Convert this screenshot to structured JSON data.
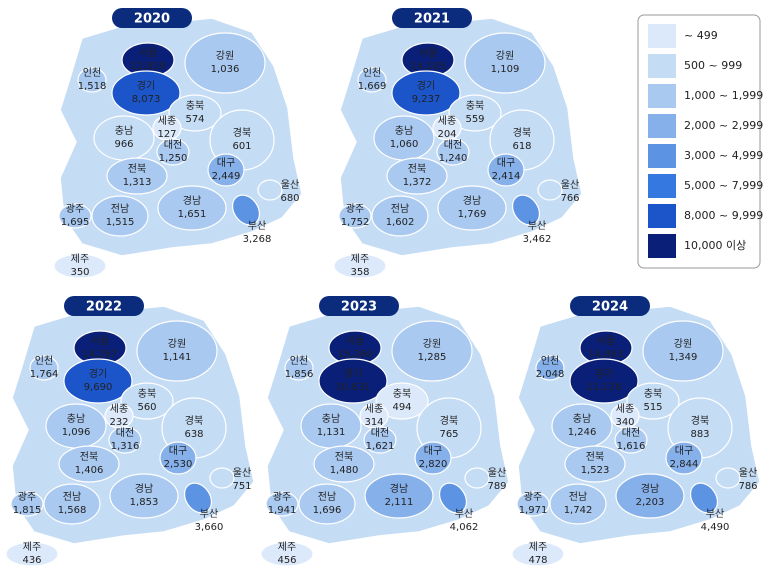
{
  "legend": [
    {
      "label": "~ 499",
      "color": "#dbe9fb"
    },
    {
      "label": "500 ~ 999",
      "color": "#c5dcf5"
    },
    {
      "label": "1,000 ~ 1,999",
      "color": "#a9c9f0"
    },
    {
      "label": "2,000 ~ 2,999",
      "color": "#86b0ea"
    },
    {
      "label": "3,000 ~ 4,999",
      "color": "#5d93e3"
    },
    {
      "label": "5,000 ~ 7,999",
      "color": "#3578e0"
    },
    {
      "label": "8,000 ~ 9,999",
      "color": "#1c55c9"
    },
    {
      "label": "10,000 이상",
      "color": "#0a1f78"
    }
  ],
  "maps": [
    {
      "year": "2020",
      "regions": [
        {
          "name": "서울",
          "value": 12819,
          "value_label": "12,819",
          "color": "#0a1f78"
        },
        {
          "name": "강원",
          "value": 1036,
          "value_label": "1,036",
          "color": "#a9c9f0"
        },
        {
          "name": "인천",
          "value": 1518,
          "value_label": "1,518",
          "color": "#a9c9f0"
        },
        {
          "name": "경기",
          "value": 8073,
          "value_label": "8,073",
          "color": "#1c55c9"
        },
        {
          "name": "충북",
          "value": 574,
          "value_label": "574",
          "color": "#c5dcf5"
        },
        {
          "name": "세종",
          "value": 127,
          "value_label": "127",
          "color": "#dbe9fb"
        },
        {
          "name": "충남",
          "value": 966,
          "value_label": "966",
          "color": "#c5dcf5"
        },
        {
          "name": "경북",
          "value": 601,
          "value_label": "601",
          "color": "#c5dcf5"
        },
        {
          "name": "대전",
          "value": 1250,
          "value_label": "1,250",
          "color": "#a9c9f0"
        },
        {
          "name": "대구",
          "value": 2449,
          "value_label": "2,449",
          "color": "#86b0ea"
        },
        {
          "name": "전북",
          "value": 1313,
          "value_label": "1,313",
          "color": "#a9c9f0"
        },
        {
          "name": "울산",
          "value": 680,
          "value_label": "680",
          "color": "#c5dcf5"
        },
        {
          "name": "광주",
          "value": 1695,
          "value_label": "1,695",
          "color": "#a9c9f0"
        },
        {
          "name": "전남",
          "value": 1515,
          "value_label": "1,515",
          "color": "#a9c9f0"
        },
        {
          "name": "경남",
          "value": 1651,
          "value_label": "1,651",
          "color": "#a9c9f0"
        },
        {
          "name": "부산",
          "value": 3268,
          "value_label": "3,268",
          "color": "#5d93e3"
        },
        {
          "name": "제주",
          "value": 350,
          "value_label": "350",
          "color": "#dbe9fb"
        }
      ]
    },
    {
      "year": "2021",
      "regions": [
        {
          "name": "서울",
          "value": 14103,
          "value_label": "14,103",
          "color": "#0a1f78"
        },
        {
          "name": "강원",
          "value": 1109,
          "value_label": "1,109",
          "color": "#a9c9f0"
        },
        {
          "name": "인천",
          "value": 1669,
          "value_label": "1,669",
          "color": "#a9c9f0"
        },
        {
          "name": "경기",
          "value": 9237,
          "value_label": "9,237",
          "color": "#1c55c9"
        },
        {
          "name": "충북",
          "value": 559,
          "value_label": "559",
          "color": "#c5dcf5"
        },
        {
          "name": "세종",
          "value": 204,
          "value_label": "204",
          "color": "#dbe9fb"
        },
        {
          "name": "충남",
          "value": 1060,
          "value_label": "1,060",
          "color": "#a9c9f0"
        },
        {
          "name": "경북",
          "value": 618,
          "value_label": "618",
          "color": "#c5dcf5"
        },
        {
          "name": "대전",
          "value": 1240,
          "value_label": "1,240",
          "color": "#a9c9f0"
        },
        {
          "name": "대구",
          "value": 2414,
          "value_label": "2,414",
          "color": "#86b0ea"
        },
        {
          "name": "전북",
          "value": 1372,
          "value_label": "1,372",
          "color": "#a9c9f0"
        },
        {
          "name": "울산",
          "value": 766,
          "value_label": "766",
          "color": "#c5dcf5"
        },
        {
          "name": "광주",
          "value": 1752,
          "value_label": "1,752",
          "color": "#a9c9f0"
        },
        {
          "name": "전남",
          "value": 1602,
          "value_label": "1,602",
          "color": "#a9c9f0"
        },
        {
          "name": "경남",
          "value": 1769,
          "value_label": "1,769",
          "color": "#a9c9f0"
        },
        {
          "name": "부산",
          "value": 3462,
          "value_label": "3,462",
          "color": "#5d93e3"
        },
        {
          "name": "제주",
          "value": 358,
          "value_label": "358",
          "color": "#dbe9fb"
        }
      ]
    },
    {
      "year": "2022",
      "regions": [
        {
          "name": "서울",
          "value": 14267,
          "value_label": "14,267",
          "color": "#0a1f78"
        },
        {
          "name": "강원",
          "value": 1141,
          "value_label": "1,141",
          "color": "#a9c9f0"
        },
        {
          "name": "인천",
          "value": 1764,
          "value_label": "1,764",
          "color": "#a9c9f0"
        },
        {
          "name": "경기",
          "value": 9690,
          "value_label": "9,690",
          "color": "#1c55c9"
        },
        {
          "name": "충북",
          "value": 560,
          "value_label": "560",
          "color": "#c5dcf5"
        },
        {
          "name": "세종",
          "value": 232,
          "value_label": "232",
          "color": "#dbe9fb"
        },
        {
          "name": "충남",
          "value": 1096,
          "value_label": "1,096",
          "color": "#a9c9f0"
        },
        {
          "name": "경북",
          "value": 638,
          "value_label": "638",
          "color": "#c5dcf5"
        },
        {
          "name": "대전",
          "value": 1316,
          "value_label": "1,316",
          "color": "#a9c9f0"
        },
        {
          "name": "대구",
          "value": 2530,
          "value_label": "2,530",
          "color": "#86b0ea"
        },
        {
          "name": "전북",
          "value": 1406,
          "value_label": "1,406",
          "color": "#a9c9f0"
        },
        {
          "name": "울산",
          "value": 751,
          "value_label": "751",
          "color": "#c5dcf5"
        },
        {
          "name": "광주",
          "value": 1815,
          "value_label": "1,815",
          "color": "#a9c9f0"
        },
        {
          "name": "전남",
          "value": 1568,
          "value_label": "1,568",
          "color": "#a9c9f0"
        },
        {
          "name": "경남",
          "value": 1853,
          "value_label": "1,853",
          "color": "#a9c9f0"
        },
        {
          "name": "부산",
          "value": 3660,
          "value_label": "3,660",
          "color": "#5d93e3"
        },
        {
          "name": "제주",
          "value": 436,
          "value_label": "436",
          "color": "#dbe9fb"
        }
      ]
    },
    {
      "year": "2023",
      "regions": [
        {
          "name": "서울",
          "value": 15266,
          "value_label": "15,266",
          "color": "#0a1f78"
        },
        {
          "name": "강원",
          "value": 1285,
          "value_label": "1,285",
          "color": "#a9c9f0"
        },
        {
          "name": "인천",
          "value": 1856,
          "value_label": "1,856",
          "color": "#a9c9f0"
        },
        {
          "name": "경기",
          "value": 10631,
          "value_label": "10,631",
          "color": "#0a1f78"
        },
        {
          "name": "충북",
          "value": 494,
          "value_label": "494",
          "color": "#dbe9fb"
        },
        {
          "name": "세종",
          "value": 314,
          "value_label": "314",
          "color": "#dbe9fb"
        },
        {
          "name": "충남",
          "value": 1131,
          "value_label": "1,131",
          "color": "#a9c9f0"
        },
        {
          "name": "경북",
          "value": 765,
          "value_label": "765",
          "color": "#c5dcf5"
        },
        {
          "name": "대전",
          "value": 1621,
          "value_label": "1,621",
          "color": "#a9c9f0"
        },
        {
          "name": "대구",
          "value": 2820,
          "value_label": "2,820",
          "color": "#86b0ea"
        },
        {
          "name": "전북",
          "value": 1480,
          "value_label": "1,480",
          "color": "#a9c9f0"
        },
        {
          "name": "울산",
          "value": 789,
          "value_label": "789",
          "color": "#c5dcf5"
        },
        {
          "name": "광주",
          "value": 1941,
          "value_label": "1,941",
          "color": "#a9c9f0"
        },
        {
          "name": "전남",
          "value": 1696,
          "value_label": "1,696",
          "color": "#a9c9f0"
        },
        {
          "name": "경남",
          "value": 2111,
          "value_label": "2,111",
          "color": "#86b0ea"
        },
        {
          "name": "부산",
          "value": 4062,
          "value_label": "4,062",
          "color": "#5d93e3"
        },
        {
          "name": "제주",
          "value": 456,
          "value_label": "456",
          "color": "#dbe9fb"
        }
      ]
    },
    {
      "year": "2024",
      "regions": [
        {
          "name": "서울",
          "value": 14863,
          "value_label": "14,863",
          "color": "#0a1f78"
        },
        {
          "name": "강원",
          "value": 1349,
          "value_label": "1,349",
          "color": "#a9c9f0"
        },
        {
          "name": "인천",
          "value": 2048,
          "value_label": "2,048",
          "color": "#86b0ea"
        },
        {
          "name": "경기",
          "value": 11128,
          "value_label": "11,128",
          "color": "#0a1f78"
        },
        {
          "name": "충북",
          "value": 515,
          "value_label": "515",
          "color": "#c5dcf5"
        },
        {
          "name": "세종",
          "value": 340,
          "value_label": "340",
          "color": "#dbe9fb"
        },
        {
          "name": "충남",
          "value": 1246,
          "value_label": "1,246",
          "color": "#a9c9f0"
        },
        {
          "name": "경북",
          "value": 883,
          "value_label": "883",
          "color": "#c5dcf5"
        },
        {
          "name": "대전",
          "value": 1616,
          "value_label": "1,616",
          "color": "#a9c9f0"
        },
        {
          "name": "대구",
          "value": 2844,
          "value_label": "2,844",
          "color": "#86b0ea"
        },
        {
          "name": "전북",
          "value": 1523,
          "value_label": "1,523",
          "color": "#a9c9f0"
        },
        {
          "name": "울산",
          "value": 786,
          "value_label": "786",
          "color": "#c5dcf5"
        },
        {
          "name": "광주",
          "value": 1971,
          "value_label": "1,971",
          "color": "#a9c9f0"
        },
        {
          "name": "전남",
          "value": 1742,
          "value_label": "1,742",
          "color": "#a9c9f0"
        },
        {
          "name": "경남",
          "value": 2203,
          "value_label": "2,203",
          "color": "#86b0ea"
        },
        {
          "name": "부산",
          "value": 4490,
          "value_label": "4,490",
          "color": "#5d93e3"
        },
        {
          "name": "제주",
          "value": 478,
          "value_label": "478",
          "color": "#dbe9fb"
        }
      ]
    }
  ]
}
